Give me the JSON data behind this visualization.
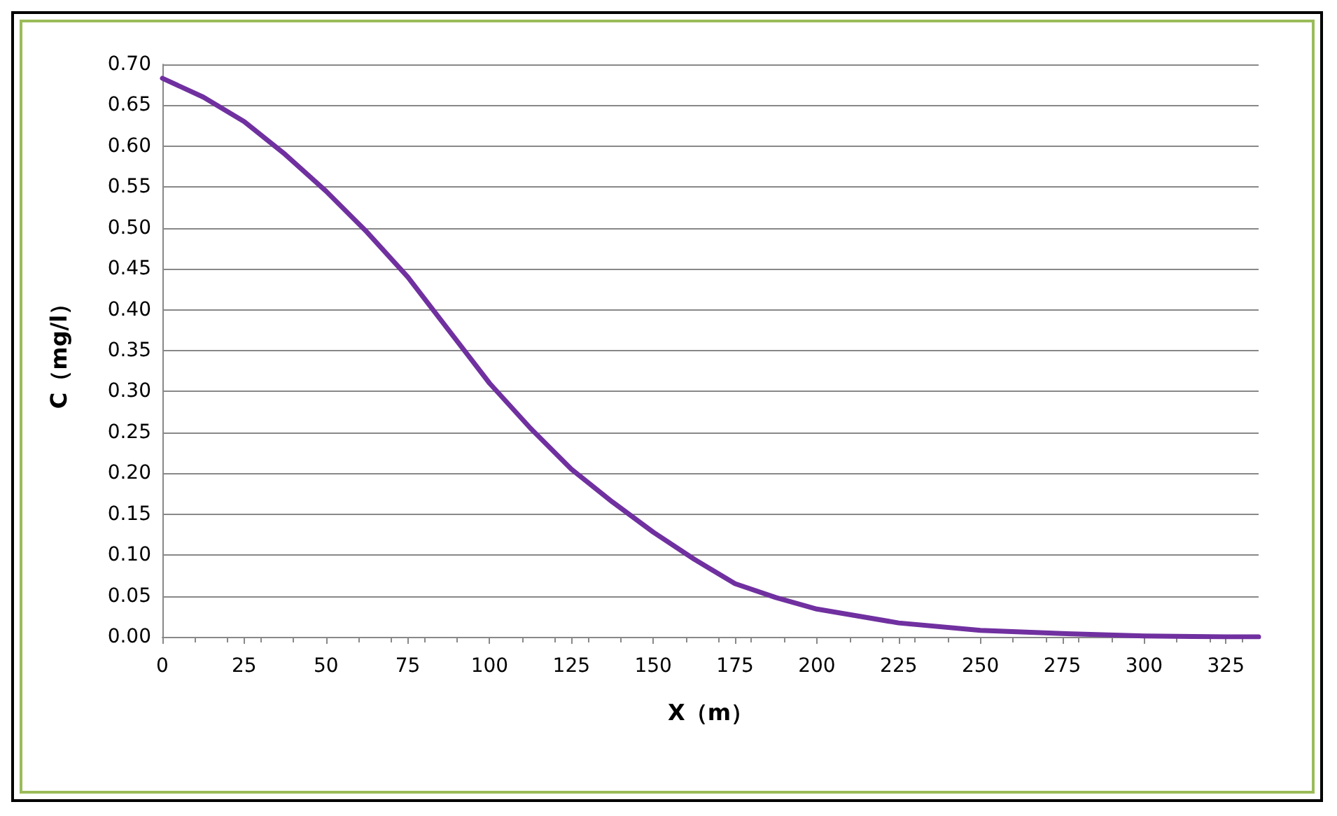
{
  "chart_data": {
    "type": "line",
    "xlabel": "X（m）",
    "ylabel": "C（mg/l）",
    "x": [
      0,
      12.5,
      25,
      37.5,
      50,
      62.5,
      75,
      87.5,
      100,
      112.5,
      125,
      137.5,
      150,
      162.5,
      175,
      187.5,
      200,
      225,
      250,
      275,
      300,
      325,
      335
    ],
    "series": [
      {
        "color": "#7030a0",
        "values": [
          0.683,
          0.66,
          0.63,
          0.59,
          0.545,
          0.495,
          0.44,
          0.375,
          0.31,
          0.255,
          0.205,
          0.165,
          0.128,
          0.095,
          0.065,
          0.048,
          0.034,
          0.017,
          0.008,
          0.004,
          0.001,
          0,
          0
        ]
      }
    ],
    "xlim": [
      0,
      335
    ],
    "xticks": [
      0,
      25,
      50,
      75,
      100,
      125,
      150,
      175,
      200,
      225,
      250,
      275,
      300,
      325
    ],
    "ylim": [
      0,
      0.7
    ],
    "yticks": [
      {
        "value": 0,
        "label": "0.00"
      },
      {
        "value": 0.05,
        "label": "0.05"
      },
      {
        "value": 0.1,
        "label": "0.10"
      },
      {
        "value": 0.15,
        "label": "0.15"
      },
      {
        "value": 0.2,
        "label": "0.20"
      },
      {
        "value": 0.25,
        "label": "0.25"
      },
      {
        "value": 0.3,
        "label": "0.30"
      },
      {
        "value": 0.35,
        "label": "0.35"
      },
      {
        "value": 0.4,
        "label": "0.40"
      },
      {
        "value": 0.45,
        "label": "0.45"
      },
      {
        "value": 0.5,
        "label": "0.50"
      },
      {
        "value": 0.55,
        "label": "0.55"
      },
      {
        "value": 0.6,
        "label": "0.60"
      },
      {
        "value": 0.65,
        "label": "0.65"
      },
      {
        "value": 0.7,
        "label": "0.70"
      }
    ],
    "grid": "y",
    "marker": "none",
    "line_style": "solid"
  }
}
